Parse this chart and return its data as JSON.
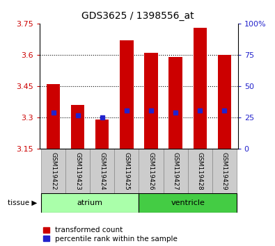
{
  "title": "GDS3625 / 1398556_at",
  "samples": [
    "GSM119422",
    "GSM119423",
    "GSM119424",
    "GSM119425",
    "GSM119426",
    "GSM119427",
    "GSM119428",
    "GSM119429"
  ],
  "bar_tops": [
    3.46,
    3.36,
    3.29,
    3.67,
    3.61,
    3.59,
    3.73,
    3.6
  ],
  "bar_base": 3.15,
  "blue_values": [
    3.325,
    3.31,
    3.3,
    3.335,
    3.335,
    3.325,
    3.335,
    3.335
  ],
  "ylim_left": [
    3.15,
    3.75
  ],
  "ylim_right": [
    0,
    100
  ],
  "yticks_left": [
    3.15,
    3.3,
    3.45,
    3.6,
    3.75
  ],
  "yticks_right": [
    0,
    25,
    50,
    75,
    100
  ],
  "ytick_labels_left": [
    "3.15",
    "3.3",
    "3.45",
    "3.6",
    "3.75"
  ],
  "ytick_labels_right": [
    "0",
    "25",
    "50",
    "75",
    "100%"
  ],
  "bar_color": "#cc0000",
  "blue_color": "#2222cc",
  "atrium_color": "#aaffaa",
  "ventricle_color": "#44cc44",
  "sample_bg_color": "#cccccc",
  "atrium_label": "atrium",
  "ventricle_label": "ventricle",
  "legend_red_label": "transformed count",
  "legend_blue_label": "percentile rank within the sample",
  "tissue_label": "tissue",
  "bar_width": 0.55,
  "grid_dotted_at": [
    3.3,
    3.45,
    3.6
  ]
}
